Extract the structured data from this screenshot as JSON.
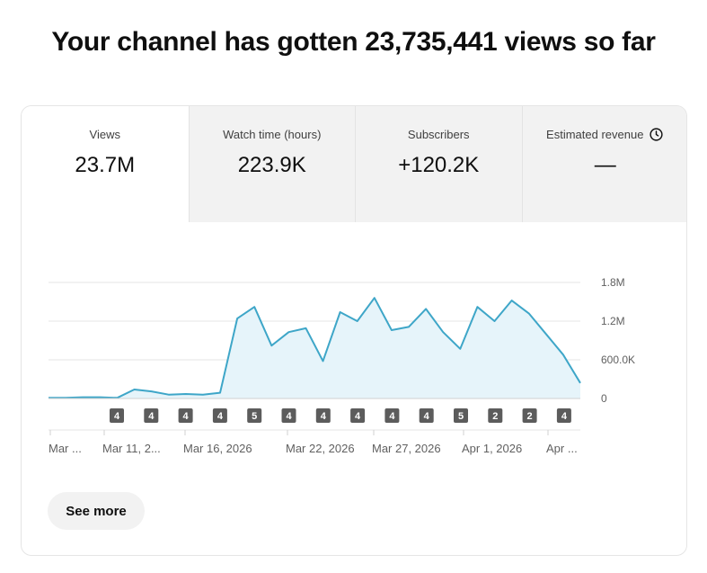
{
  "headline": "Your channel has gotten 23,735,441 views so far",
  "tabs": [
    {
      "label": "Views",
      "value": "23.7M",
      "active": true
    },
    {
      "label": "Watch time (hours)",
      "value": "223.9K",
      "active": false
    },
    {
      "label": "Subscribers",
      "value": "+120.2K",
      "active": false
    },
    {
      "label": "Estimated revenue",
      "value": "—",
      "active": false,
      "icon": "clock-icon"
    }
  ],
  "see_more_label": "See more",
  "chart_data": {
    "type": "area",
    "color": "#3ea6c8",
    "fill": "#e6f4fa",
    "ylim": [
      0,
      1800000
    ],
    "y_ticks": [
      {
        "value": 0,
        "label": "0"
      },
      {
        "value": 600000,
        "label": "600.0K"
      },
      {
        "value": 1200000,
        "label": "1.2M"
      },
      {
        "value": 1800000,
        "label": "1.8M"
      }
    ],
    "x_tick_labels": [
      "Mar ...",
      "Mar 11, 2...",
      "Mar 16, 2026",
      "Mar 22, 2026",
      "Mar 27, 2026",
      "Apr 1, 2026",
      "Apr ..."
    ],
    "values": [
      10000,
      10000,
      20000,
      20000,
      10000,
      140000,
      110000,
      60000,
      70000,
      60000,
      90000,
      1240000,
      1420000,
      820000,
      1030000,
      1090000,
      580000,
      1340000,
      1200000,
      1560000,
      1060000,
      1110000,
      1390000,
      1030000,
      770000,
      1420000,
      1200000,
      1520000,
      1320000,
      1000000,
      680000,
      240000
    ],
    "badges": [
      "4",
      "4",
      "4",
      "4",
      "5",
      "4",
      "4",
      "4",
      "4",
      "4",
      "5",
      "2",
      "2",
      "4"
    ]
  }
}
